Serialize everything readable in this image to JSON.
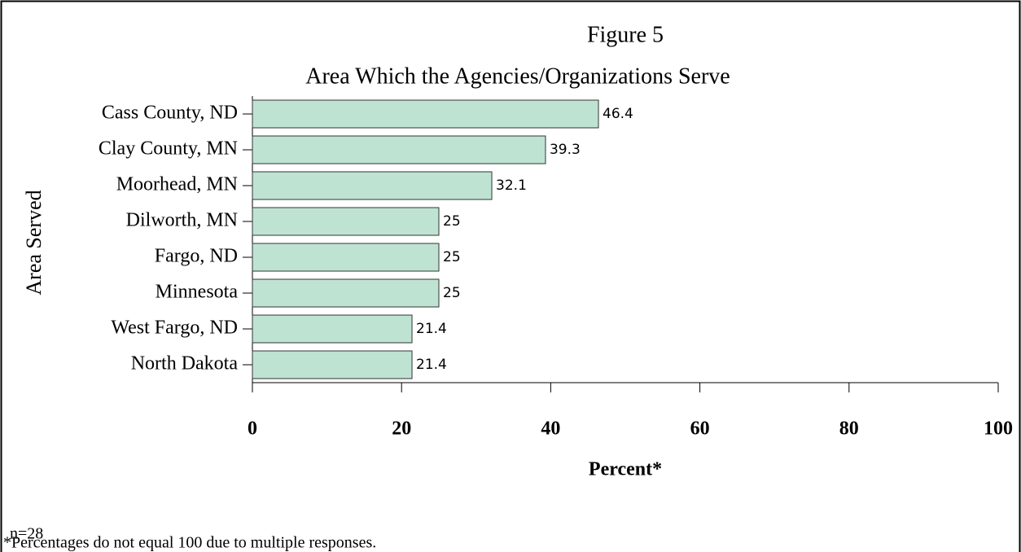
{
  "chart_data": {
    "type": "bar",
    "orientation": "horizontal",
    "title": "Figure 5",
    "subtitle": "Area Which the Agencies/Organizations Serve",
    "y_label": "Area Served",
    "x_label": "Percent*",
    "categories": [
      "Cass County, ND",
      "Clay County, MN",
      "Moorhead, MN",
      "Dilworth, MN",
      "Fargo, ND",
      "Minnesota",
      "West Fargo, ND",
      "North Dakota"
    ],
    "values": [
      46.4,
      39.3,
      32.1,
      25,
      25,
      25,
      21.4,
      21.4
    ],
    "color": "#bfe3d3",
    "xlim": [
      0,
      100
    ],
    "xticks": [
      0,
      20,
      40,
      60,
      80,
      100
    ],
    "grid": false,
    "notes": [
      "n=28",
      "*Percentages do not equal 100 due to multiple responses."
    ]
  }
}
